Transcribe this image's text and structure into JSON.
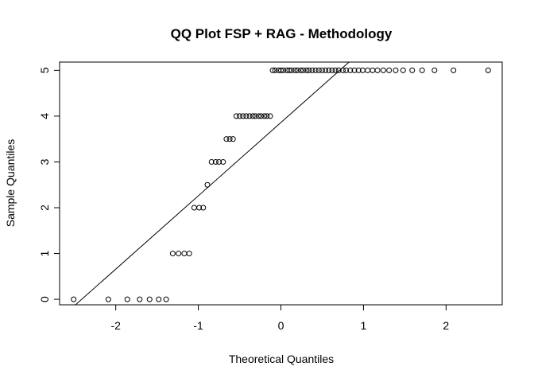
{
  "chart_data": {
    "type": "scatter",
    "title": "QQ Plot FSP + RAG - Methodology",
    "xlabel": "Theoretical Quantiles",
    "ylabel": "Sample Quantiles",
    "xlim": [
      -2.68,
      2.68
    ],
    "ylim": [
      -0.12,
      5.18
    ],
    "x_ticks": [
      -2,
      -1,
      0,
      1,
      2
    ],
    "y_ticks": [
      0,
      1,
      2,
      3,
      4,
      5
    ],
    "grid": false,
    "marker": "open-circle",
    "colors": {
      "points": "#000000",
      "line": "#000000",
      "background": "#ffffff"
    },
    "reference_line": {
      "intercept": 3.86,
      "slope": 1.6
    },
    "points": [
      {
        "x": -2.51,
        "y": 0
      },
      {
        "x": -2.09,
        "y": 0
      },
      {
        "x": -1.86,
        "y": 0
      },
      {
        "x": -1.71,
        "y": 0
      },
      {
        "x": -1.59,
        "y": 0
      },
      {
        "x": -1.48,
        "y": 0
      },
      {
        "x": -1.39,
        "y": 0
      },
      {
        "x": -1.31,
        "y": 1
      },
      {
        "x": -1.24,
        "y": 1
      },
      {
        "x": -1.17,
        "y": 1
      },
      {
        "x": -1.11,
        "y": 1
      },
      {
        "x": -1.05,
        "y": 2
      },
      {
        "x": -0.99,
        "y": 2
      },
      {
        "x": -0.94,
        "y": 2
      },
      {
        "x": -0.89,
        "y": 2.5
      },
      {
        "x": -0.84,
        "y": 3
      },
      {
        "x": -0.79,
        "y": 3
      },
      {
        "x": -0.75,
        "y": 3
      },
      {
        "x": -0.7,
        "y": 3
      },
      {
        "x": -0.66,
        "y": 3.5
      },
      {
        "x": -0.62,
        "y": 3.5
      },
      {
        "x": -0.58,
        "y": 3.5
      },
      {
        "x": -0.54,
        "y": 4
      },
      {
        "x": -0.5,
        "y": 4
      },
      {
        "x": -0.46,
        "y": 4
      },
      {
        "x": -0.42,
        "y": 4
      },
      {
        "x": -0.38,
        "y": 4
      },
      {
        "x": -0.34,
        "y": 4
      },
      {
        "x": -0.31,
        "y": 4
      },
      {
        "x": -0.27,
        "y": 4
      },
      {
        "x": -0.24,
        "y": 4
      },
      {
        "x": -0.2,
        "y": 4
      },
      {
        "x": -0.17,
        "y": 4
      },
      {
        "x": -0.13,
        "y": 4
      },
      {
        "x": -0.1,
        "y": 5
      },
      {
        "x": -0.07,
        "y": 5
      },
      {
        "x": -0.03,
        "y": 5
      },
      {
        "x": 0.0,
        "y": 5
      },
      {
        "x": 0.03,
        "y": 5
      },
      {
        "x": 0.07,
        "y": 5
      },
      {
        "x": 0.1,
        "y": 5
      },
      {
        "x": 0.13,
        "y": 5
      },
      {
        "x": 0.17,
        "y": 5
      },
      {
        "x": 0.2,
        "y": 5
      },
      {
        "x": 0.24,
        "y": 5
      },
      {
        "x": 0.27,
        "y": 5
      },
      {
        "x": 0.31,
        "y": 5
      },
      {
        "x": 0.34,
        "y": 5
      },
      {
        "x": 0.38,
        "y": 5
      },
      {
        "x": 0.42,
        "y": 5
      },
      {
        "x": 0.46,
        "y": 5
      },
      {
        "x": 0.5,
        "y": 5
      },
      {
        "x": 0.54,
        "y": 5
      },
      {
        "x": 0.58,
        "y": 5
      },
      {
        "x": 0.62,
        "y": 5
      },
      {
        "x": 0.66,
        "y": 5
      },
      {
        "x": 0.7,
        "y": 5
      },
      {
        "x": 0.75,
        "y": 5
      },
      {
        "x": 0.79,
        "y": 5
      },
      {
        "x": 0.84,
        "y": 5
      },
      {
        "x": 0.89,
        "y": 5
      },
      {
        "x": 0.94,
        "y": 5
      },
      {
        "x": 0.99,
        "y": 5
      },
      {
        "x": 1.05,
        "y": 5
      },
      {
        "x": 1.11,
        "y": 5
      },
      {
        "x": 1.17,
        "y": 5
      },
      {
        "x": 1.24,
        "y": 5
      },
      {
        "x": 1.31,
        "y": 5
      },
      {
        "x": 1.39,
        "y": 5
      },
      {
        "x": 1.48,
        "y": 5
      },
      {
        "x": 1.59,
        "y": 5
      },
      {
        "x": 1.71,
        "y": 5
      },
      {
        "x": 1.86,
        "y": 5
      },
      {
        "x": 2.09,
        "y": 5
      },
      {
        "x": 2.51,
        "y": 5
      }
    ]
  }
}
